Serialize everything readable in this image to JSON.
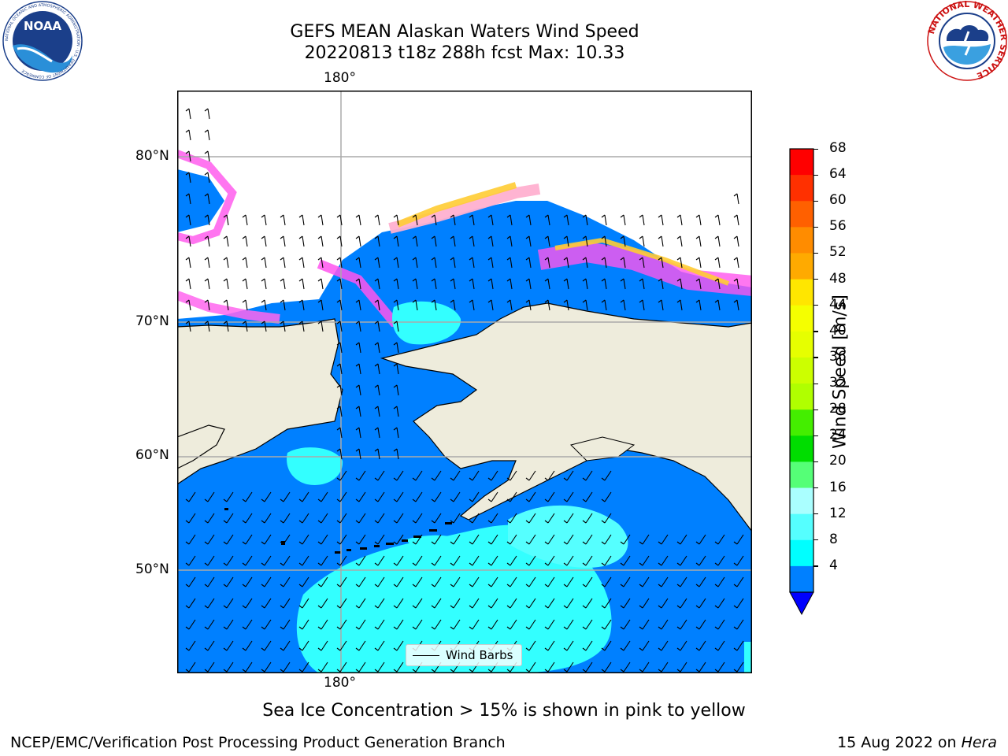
{
  "title": {
    "line1": "GEFS MEAN Alaskan Waters Wind Speed",
    "line2": "20220813 t18z 288h fcst   Max: 10.33"
  },
  "logos": {
    "left": {
      "name": "noaa-logo",
      "text": "NOAA",
      "ring_text": "NATIONAL OCEANIC AND ATMOSPHERIC ADMINISTRATION · U.S. DEPARTMENT OF COMMERCE"
    },
    "right": {
      "name": "nws-logo",
      "ring_text": "NATIONAL WEATHER SERVICE"
    }
  },
  "map": {
    "projection": "Mercator",
    "lon_label_top": "180°",
    "lon_label_bottom": "180°",
    "lat_labels": [
      "80°N",
      "70°N",
      "60°N",
      "50°N"
    ],
    "legend_label": "Wind Barbs",
    "colors": {
      "land": "#eeecdc",
      "ocean_4_8": "#0080ff",
      "ocean_8_12": "#00ffff",
      "ocean_12_16": "#55ffff",
      "sea_ice_low": "#ff44ff",
      "sea_ice_mid": "#ffb0d0",
      "sea_ice_high": "#ffcc33",
      "barb": "#000000",
      "grid": "#aaaaaa"
    }
  },
  "colorbar": {
    "label": "Wind Speed [m/s]",
    "ticks": [
      "68",
      "64",
      "60",
      "56",
      "52",
      "48",
      "44",
      "40",
      "36",
      "32",
      "28",
      "24",
      "20",
      "16",
      "12",
      "8",
      "4"
    ],
    "colors_top_to_bottom": [
      "#ff0000",
      "#ff3000",
      "#ff6000",
      "#ff8c00",
      "#ffaa00",
      "#ffe600",
      "#f5ff00",
      "#e6ff00",
      "#ccff00",
      "#b0ff00",
      "#44ee00",
      "#00dd00",
      "#55ff77",
      "#aaffff",
      "#55ffff",
      "#00ffff",
      "#0080ff"
    ],
    "under_color": "#0000ff"
  },
  "caption": "Sea Ice Concentration > 15% is shown in pink to yellow",
  "footer": {
    "left": "NCEP/EMC/Verification Post Processing Product Generation Branch",
    "right_plain": "15 Aug 2022 on ",
    "right_italic": "Hera"
  }
}
